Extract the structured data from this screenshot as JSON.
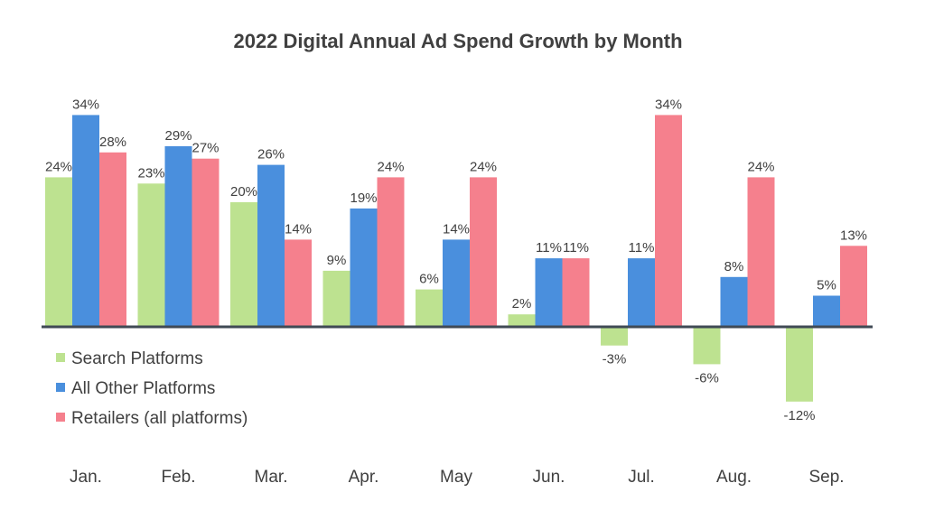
{
  "chart_data": {
    "type": "bar",
    "title": "2022 Digital Annual Ad Spend Growth by Month",
    "xlabel": "",
    "ylabel": "",
    "categories": [
      "Jan.",
      "Feb.",
      "Mar.",
      "Apr.",
      "May",
      "Jun.",
      "Jul.",
      "Aug.",
      "Sep."
    ],
    "series": [
      {
        "name": "Search Platforms",
        "color": "#bde290",
        "values": [
          24,
          23,
          20,
          9,
          6,
          2,
          -3,
          -6,
          -12
        ]
      },
      {
        "name": "All Other Platforms",
        "color": "#4a8fdd",
        "values": [
          34,
          29,
          26,
          19,
          14,
          11,
          11,
          8,
          5
        ]
      },
      {
        "name": "Retailers (all platforms)",
        "color": "#f5808d",
        "values": [
          28,
          27,
          14,
          24,
          24,
          11,
          34,
          24,
          13
        ]
      }
    ],
    "value_suffix": "%",
    "ylim": [
      -12,
      34
    ],
    "grid": false,
    "legend_position": "bottom-left",
    "axis_color": "#404a55"
  }
}
